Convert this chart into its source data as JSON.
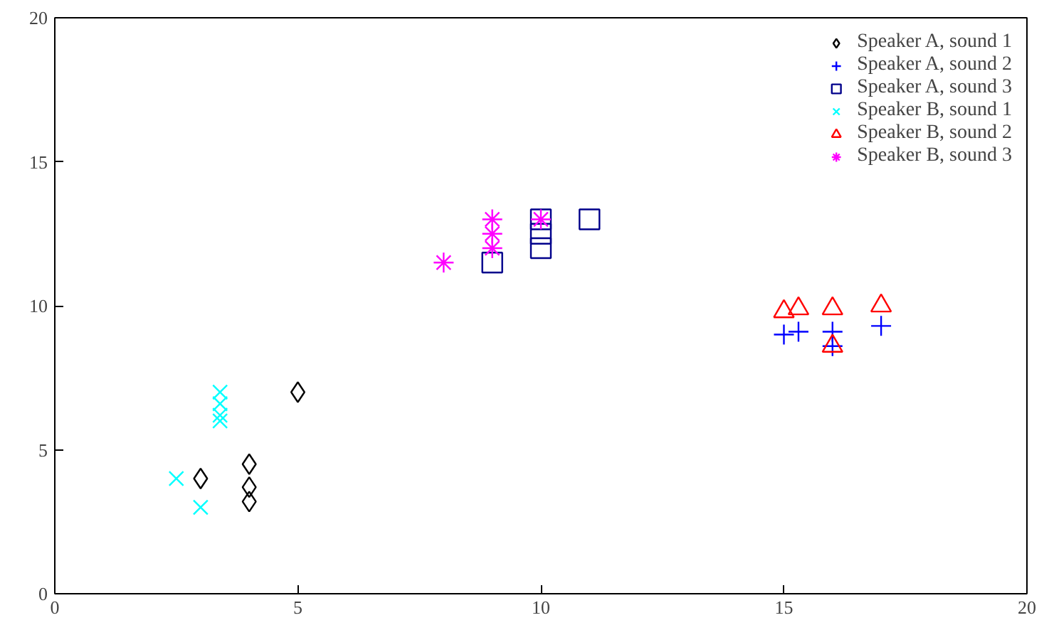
{
  "chart_data": {
    "type": "scatter",
    "xlim": [
      0,
      20
    ],
    "ylim": [
      0,
      20
    ],
    "xticks": [
      0,
      5,
      10,
      15,
      20
    ],
    "yticks": [
      0,
      5,
      10,
      15,
      20
    ],
    "grid": false,
    "legend": "top right",
    "series": [
      {
        "name": "Speaker A, sound 1",
        "color": "#000000",
        "marker": "diamond",
        "x": [
          3,
          4,
          4,
          4,
          5
        ],
        "values": [
          4,
          4.5,
          3.7,
          3.2,
          7
        ]
      },
      {
        "name": "Speaker A, sound 2",
        "color": "#0000ff",
        "marker": "cross",
        "x": [
          15,
          15.3,
          16,
          16,
          17
        ],
        "values": [
          9,
          9.1,
          9.1,
          8.6,
          9.3
        ]
      },
      {
        "name": "Speaker A, sound 3",
        "color": "#00008b",
        "marker": "square",
        "x": [
          9,
          10,
          10,
          10,
          11
        ],
        "values": [
          11.5,
          13,
          12.5,
          12,
          13
        ]
      },
      {
        "name": "Speaker B, sound 1",
        "color": "#00ffff",
        "marker": "x",
        "x": [
          2.5,
          3,
          3.4,
          3.4,
          3.4,
          3.4
        ],
        "values": [
          4,
          3,
          7,
          6.6,
          6.2,
          6
        ]
      },
      {
        "name": "Speaker B, sound 2",
        "color": "#ff0000",
        "marker": "triangle",
        "x": [
          15,
          15.3,
          16,
          16,
          17
        ],
        "values": [
          9.8,
          9.9,
          9.9,
          8.6,
          10
        ]
      },
      {
        "name": "Speaker B, sound 3",
        "color": "#ff00ff",
        "x": [
          8,
          9,
          9,
          9,
          10
        ],
        "values": [
          11.5,
          13,
          12.5,
          12,
          13
        ]
      }
    ]
  }
}
